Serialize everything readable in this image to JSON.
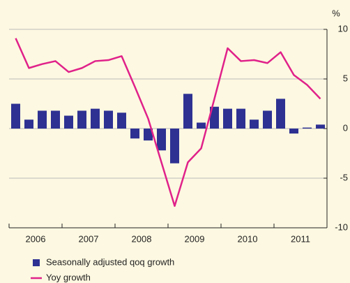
{
  "chart_data": {
    "type": "bar_line",
    "y_unit": "%",
    "years": [
      "2006",
      "2007",
      "2008",
      "2009",
      "2010",
      "2011"
    ],
    "series": [
      {
        "name": "Seasonally adjusted qoq growth",
        "type": "bar",
        "color": "#2e3192",
        "values": [
          2.5,
          0.9,
          1.8,
          1.8,
          1.3,
          1.8,
          2.0,
          1.8,
          1.6,
          -1.0,
          -1.2,
          -2.2,
          -3.5,
          3.5,
          0.6,
          2.2,
          2.0,
          2.0,
          0.9,
          1.8,
          3.0,
          -0.5,
          0.1,
          0.4
        ]
      },
      {
        "name": "Yoy growth",
        "type": "line",
        "color": "#e0218a",
        "values": [
          9.1,
          6.1,
          6.5,
          6.8,
          5.7,
          6.1,
          6.8,
          6.9,
          7.3,
          4.2,
          1.0,
          -3.4,
          -7.8,
          -3.4,
          -2.0,
          3.0,
          8.1,
          6.8,
          6.9,
          6.6,
          7.7,
          5.4,
          4.4,
          3.0
        ]
      }
    ],
    "ylim": [
      -10,
      10
    ],
    "yticks": [
      10,
      5,
      0,
      -5,
      -10
    ],
    "grid": true
  }
}
